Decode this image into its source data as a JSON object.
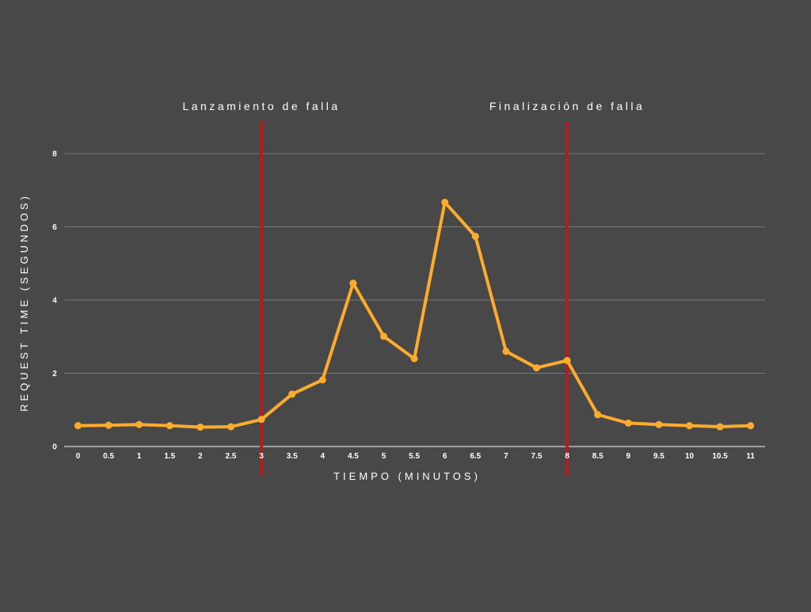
{
  "chart_data": {
    "type": "line",
    "title": "",
    "xlabel": "TIEMPO (MINUTOS)",
    "ylabel": "REQUEST TIME (SEGUNDOS)",
    "x": [
      0,
      0.5,
      1,
      1.5,
      2,
      2.5,
      3,
      3.5,
      4,
      4.5,
      5,
      5.5,
      6,
      6.5,
      7,
      7.5,
      8,
      8.5,
      9,
      9.5,
      10,
      10.5,
      11
    ],
    "x_tick_labels": [
      "0",
      "0.5",
      "1",
      "1.5",
      "2",
      "2.5",
      "3",
      "3.5",
      "4",
      "4.5",
      "5",
      "5.5",
      "6",
      "6.5",
      "7",
      "7.5",
      "8",
      "8.5",
      "9",
      "9.5",
      "10",
      "10.5",
      "11"
    ],
    "series": [
      {
        "values": [
          0.57,
          0.58,
          0.6,
          0.57,
          0.53,
          0.54,
          0.74,
          1.43,
          1.82,
          4.46,
          3.01,
          2.4,
          6.67,
          5.74,
          2.6,
          2.15,
          2.35,
          0.87,
          0.64,
          0.6,
          0.57,
          0.54,
          0.57
        ],
        "color": "#FFAC2D"
      }
    ],
    "ylim": [
      0,
      8
    ],
    "y_ticks": [
      0,
      2,
      4,
      6,
      8
    ],
    "y_tick_labels": [
      "0",
      "2",
      "4",
      "6",
      "8"
    ],
    "grid": true,
    "grid_color": "#7A7A7A",
    "background_color": "#484848",
    "annotations": [
      {
        "x": 3,
        "text": "Lanzamiento de falla",
        "line_color": "#B01E1E"
      },
      {
        "x": 8,
        "text": "Finalización de falla",
        "line_color": "#B01E1E"
      }
    ]
  }
}
